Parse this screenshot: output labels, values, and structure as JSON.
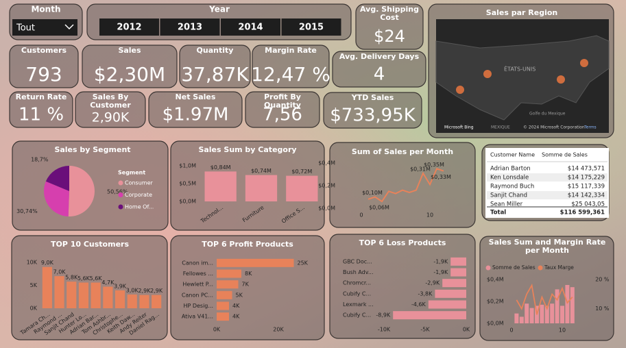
{
  "month_slicer": {
    "title": "Month",
    "value": "Tout"
  },
  "year_slicer": {
    "title": "Year",
    "options": [
      "2012",
      "2013",
      "2014",
      "2015"
    ]
  },
  "cards": [
    {
      "label": "Avg. Shipping Cost",
      "value": "$24"
    },
    {
      "label": "Customers",
      "value": "793"
    },
    {
      "label": "Sales",
      "value": "$2,30M"
    },
    {
      "label": "Quantity",
      "value": "37,87K"
    },
    {
      "label": "Margin Rate",
      "value": "12,47 %"
    },
    {
      "label": "Avg. Delivery Days",
      "value": "4"
    },
    {
      "label": "Return Rate",
      "value": "11 %"
    },
    {
      "label": "Sales By Customer",
      "value": "2,90K"
    },
    {
      "label": "Net Sales",
      "value": "$1.97M"
    },
    {
      "label": "Profit By Quantity",
      "value": "7,56"
    },
    {
      "label": "YTD Sales",
      "value": "$733,95K"
    }
  ],
  "map": {
    "title": "Sales par Region",
    "country": "ÉTATS-UNIS",
    "gulf": "Golfe du Mexique",
    "mexico": "MEXIQUE",
    "provider": "Microsoft Bing",
    "copyright": "© 2024 Microsoft Corporation",
    "terms": "Terms"
  },
  "table": {
    "columns": [
      "Customer Name",
      "Somme de Sales"
    ],
    "rows": [
      [
        "Adrian Barton",
        "$14 473,571"
      ],
      [
        "Ken Lonsdale",
        "$14 175,229"
      ],
      [
        "Raymond Buch",
        "$15 117,339"
      ],
      [
        "Sanjit Chand",
        "$14 142,334"
      ],
      [
        "Sean Miller",
        "$25 043,05"
      ]
    ],
    "total": [
      "Total",
      "$116 599,361"
    ]
  },
  "chart_data": [
    {
      "type": "pie",
      "title": "Sales by Segment",
      "legend_title": "Segment",
      "categories": [
        "Consumer",
        "Corporate",
        "Home Of..."
      ],
      "values": [
        50.56,
        30.74,
        18.7
      ],
      "value_labels": [
        "50,56%",
        "30,74%",
        "18,7%"
      ],
      "colors": [
        "#e8919a",
        "#d63fae",
        "#6a0f7a"
      ]
    },
    {
      "type": "bar",
      "title": "Sales Sum by Category",
      "categories": [
        "Technol...",
        "Furniture",
        "Office S..."
      ],
      "values": [
        840000,
        740000,
        720000
      ],
      "value_labels": [
        "$0,84M",
        "$0,74M",
        "$0,72M"
      ],
      "color": "#e8919a",
      "ylim": [
        0,
        1000000
      ],
      "yticks": [
        {
          "value": 0,
          "label": "$0,0M"
        },
        {
          "value": 500000,
          "label": "$0,5M"
        },
        {
          "value": 1000000,
          "label": "$1,0M"
        }
      ]
    },
    {
      "type": "line",
      "title": "Sum of Sales per Month",
      "x": [
        1,
        2,
        3,
        4,
        5,
        6,
        7,
        8,
        9,
        10,
        11,
        12
      ],
      "values": [
        80000,
        100000,
        60000,
        150000,
        130000,
        160000,
        140000,
        160000,
        310000,
        210000,
        350000,
        330000
      ],
      "value_labels": [
        null,
        "$0,10M",
        "$0,06M",
        null,
        null,
        null,
        null,
        null,
        "$0,31M",
        null,
        "$0,35M",
        "$0,33M"
      ],
      "color": "#e8825a",
      "xlim": [
        -1,
        13
      ],
      "xticks": [
        0,
        10
      ],
      "ylim": [
        0,
        400000
      ],
      "yticks": [
        {
          "value": 0,
          "label": "$0,0M"
        },
        {
          "value": 200000,
          "label": "$0,2M"
        },
        {
          "value": 400000,
          "label": "$0,4M"
        }
      ]
    },
    {
      "type": "bar",
      "title": "TOP 10 Customers",
      "categories": [
        "Tamara Ch...",
        "Raymond ...",
        "Sanjit Chand",
        "Hunter Lo...",
        "Adrian Bar...",
        "Tom Ashbr...",
        "Christophe...",
        "Keith Daw...",
        "Andy Reiter",
        "Daniel Rag..."
      ],
      "values": [
        9000,
        7000,
        5800,
        5600,
        5600,
        4700,
        3900,
        3000,
        2900,
        2900
      ],
      "value_labels": [
        "9,0K",
        "7,0K",
        "5,8K",
        "5,6K",
        "5,6K",
        "4,7K",
        "3,9K",
        "3,0K",
        "2,9K",
        "2,9K"
      ],
      "color": "#e8825a",
      "ylim": [
        0,
        10000
      ],
      "yticks": [
        {
          "value": 0,
          "label": "0K"
        },
        {
          "value": 5000,
          "label": "5K"
        },
        {
          "value": 10000,
          "label": "10K"
        }
      ]
    },
    {
      "type": "hbar",
      "title": "TOP 6 Profit Products",
      "categories": [
        "Canon im...",
        "Fellowes ...",
        "Hewlett P...",
        "Canon PC...",
        "HP Desig...",
        "Ativa V41..."
      ],
      "values": [
        25000,
        8000,
        7000,
        5000,
        4000,
        4000
      ],
      "value_labels": [
        "25K",
        "8K",
        "7K",
        "5K",
        "4K",
        "4K"
      ],
      "color": "#e8825a",
      "xlim": [
        0,
        28000
      ],
      "xticks": [
        {
          "value": 0,
          "label": "0K"
        },
        {
          "value": 20000,
          "label": "20K"
        }
      ]
    },
    {
      "type": "hbar",
      "title": "TOP 6 Loss Products",
      "categories": [
        "GBC Doc...",
        "Bush Adv...",
        "Chromcr...",
        "Cubify C...",
        "Lexmark ...",
        "Cubify C..."
      ],
      "values": [
        -1900,
        -1900,
        -2900,
        -3800,
        -4600,
        -8900
      ],
      "value_labels": [
        "-1,9K",
        "-1,9K",
        "-2,9K",
        "-3,8K",
        "-4,6K",
        "-8,9K"
      ],
      "color": "#e8919a",
      "xlim": [
        -10000,
        0
      ],
      "xticks": [
        {
          "value": -10000,
          "label": "-10K"
        },
        {
          "value": -5000,
          "label": "-5K"
        },
        {
          "value": 0,
          "label": "0K"
        }
      ]
    },
    {
      "type": "combo",
      "title": "Sales Sum and Margin Rate per Month",
      "x": [
        1,
        2,
        3,
        4,
        5,
        6,
        7,
        8,
        9,
        10,
        11,
        12
      ],
      "series": [
        {
          "name": "Somme de Sales",
          "color": "#e8919a",
          "values": [
            90000,
            60000,
            180000,
            140000,
            160000,
            170000,
            160000,
            180000,
            310000,
            160000,
            350000,
            330000
          ]
        },
        {
          "name": "Taux Marge",
          "color": "#e8825a",
          "axis": "y2",
          "values": [
            13,
            10,
            15,
            18,
            8,
            14,
            10,
            15,
            13,
            17,
            12,
            14
          ]
        }
      ],
      "xlim": [
        -1,
        13
      ],
      "xticks": [
        0,
        10
      ],
      "ylim": [
        0,
        400000
      ],
      "yticks": [
        {
          "value": 0,
          "label": "$0,0M"
        },
        {
          "value": 200000,
          "label": "$0,2M"
        },
        {
          "value": 400000,
          "label": "$0,4M"
        }
      ],
      "y2lim": [
        5,
        20
      ],
      "y2ticks": [
        {
          "value": 10,
          "label": "10 %"
        },
        {
          "value": 20,
          "label": "20 %"
        }
      ]
    }
  ]
}
